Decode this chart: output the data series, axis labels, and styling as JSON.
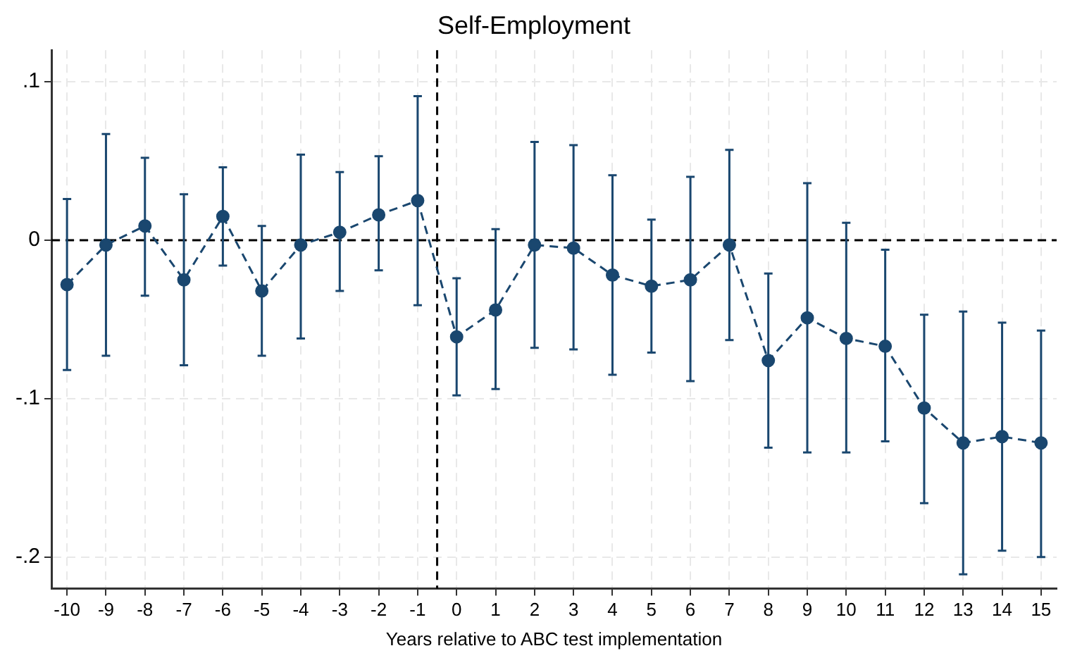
{
  "chart_data": {
    "type": "line",
    "title": "Self-Employment",
    "xlabel": "Years relative to ABC test implementation",
    "x": [
      -10,
      -9,
      -8,
      -7,
      -6,
      -5,
      -4,
      -3,
      -2,
      -1,
      0,
      1,
      2,
      3,
      4,
      5,
      6,
      7,
      8,
      9,
      10,
      11,
      12,
      13,
      14,
      15
    ],
    "series": [
      {
        "color": "#1a476f",
        "values": [
          -0.028,
          -0.003,
          0.009,
          -0.025,
          0.015,
          -0.032,
          -0.003,
          0.005,
          0.016,
          0.025,
          -0.061,
          -0.044,
          -0.003,
          -0.005,
          -0.022,
          -0.029,
          -0.025,
          -0.003,
          -0.076,
          -0.049,
          -0.062,
          -0.067,
          -0.106,
          -0.128,
          -0.124,
          -0.128
        ],
        "errors": [
          [
            -0.082,
            0.026
          ],
          [
            -0.073,
            0.067
          ],
          [
            -0.035,
            0.052
          ],
          [
            -0.079,
            0.029
          ],
          [
            -0.016,
            0.046
          ],
          [
            -0.073,
            0.009
          ],
          [
            -0.062,
            0.054
          ],
          [
            -0.032,
            0.043
          ],
          [
            -0.019,
            0.053
          ],
          [
            -0.041,
            0.091
          ],
          [
            -0.098,
            -0.024
          ],
          [
            -0.094,
            0.007
          ],
          [
            -0.068,
            0.062
          ],
          [
            -0.069,
            0.06
          ],
          [
            -0.085,
            0.041
          ],
          [
            -0.071,
            0.013
          ],
          [
            -0.089,
            0.04
          ],
          [
            -0.063,
            0.057
          ],
          [
            -0.131,
            -0.021
          ],
          [
            -0.134,
            0.036
          ],
          [
            -0.134,
            0.011
          ],
          [
            -0.127,
            -0.006
          ],
          [
            -0.166,
            -0.047
          ],
          [
            -0.211,
            -0.045
          ],
          [
            -0.196,
            -0.052
          ],
          [
            -0.2,
            -0.057
          ]
        ]
      }
    ],
    "xlim": [
      -10.4,
      15.4
    ],
    "xticks": [
      -10,
      -9,
      -8,
      -7,
      -6,
      -5,
      -4,
      -3,
      -2,
      -1,
      0,
      1,
      2,
      3,
      4,
      5,
      6,
      7,
      8,
      9,
      10,
      11,
      12,
      13,
      14,
      15
    ],
    "ylim": [
      -0.22,
      0.12
    ],
    "yticks": [
      {
        "value": 0.1,
        "label": ".1"
      },
      0,
      {
        "value": -0.1,
        "label": "-.1"
      },
      {
        "value": -0.2,
        "label": "-.2"
      }
    ],
    "ref_lines": [
      {
        "axis": "y",
        "value": 0,
        "line_style": "dashed",
        "color": "#000000"
      },
      {
        "axis": "x",
        "value": -0.5,
        "line_style": "dashed",
        "color": "#000000"
      }
    ],
    "grid": true,
    "legend": false,
    "marker": "circle",
    "line_style": "dashed"
  }
}
